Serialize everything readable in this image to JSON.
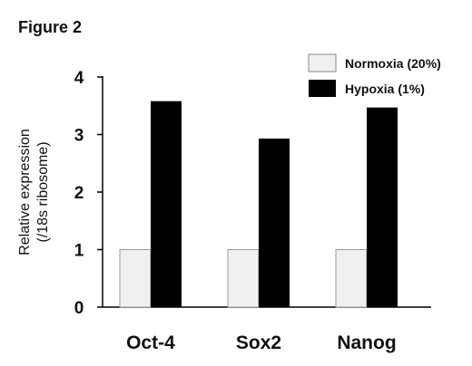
{
  "figure_label": "Figure 2",
  "chart_data": {
    "type": "bar",
    "categories": [
      "Oct-4",
      "Sox2",
      "Nanog"
    ],
    "series": [
      {
        "name": "Normoxia (20%)",
        "values": [
          1,
          1,
          1
        ],
        "color": "#f0f0f0"
      },
      {
        "name": "Hypoxia (1%)",
        "values": [
          3.58,
          2.93,
          3.47
        ],
        "color": "#000000"
      }
    ],
    "ylabel_lines": [
      "Relative expression",
      "(/18s ribosome)"
    ],
    "xlabel": "",
    "ylim": [
      0,
      4
    ],
    "yticks": [
      "0",
      "1",
      "2",
      "3",
      "4"
    ],
    "grid": false,
    "legend_position": "top-right"
  }
}
